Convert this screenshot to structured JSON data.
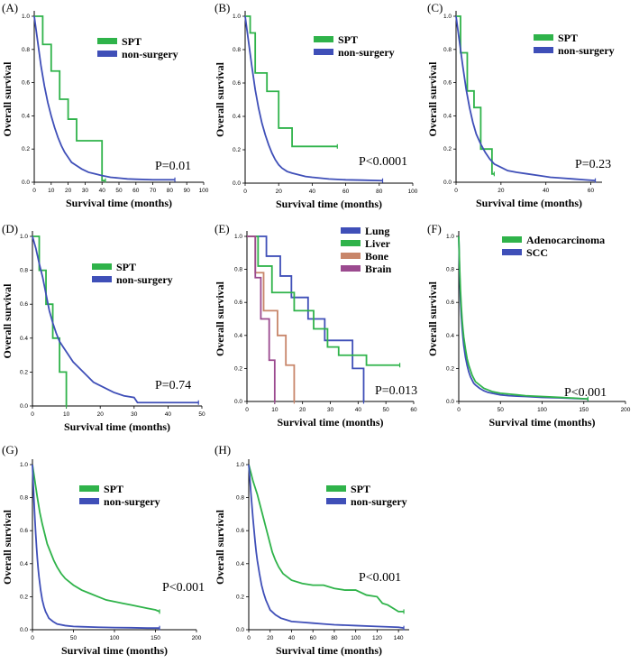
{
  "colors": {
    "green": "#2fb34a",
    "blue": "#3f4fb8",
    "tan": "#c8b77a",
    "brown": "#c8866a",
    "purple": "#9b4a8f",
    "frame": "#000000"
  },
  "chart_data": [
    {
      "type": "line",
      "panel_label": "(A)",
      "xlabel": "Survival time (months)",
      "ylabel": "Overall survival",
      "xlim": [
        0,
        100
      ],
      "ylim": [
        0,
        1
      ],
      "xticks": [
        "0",
        "10",
        "20",
        "30",
        "40",
        "50",
        "60",
        "70",
        "80",
        "90",
        "100"
      ],
      "yticks": [
        "0.0",
        "0.2",
        "0.4",
        "0.6",
        "0.8",
        "1.0"
      ],
      "annotation": "P=0.01",
      "series": [
        {
          "name": "SPT",
          "color": "#2fb34a",
          "x": [
            0,
            5,
            5,
            10,
            10,
            15,
            15,
            20,
            20,
            25,
            25,
            40,
            40,
            42
          ],
          "y": [
            1,
            1,
            0.83,
            0.83,
            0.67,
            0.67,
            0.5,
            0.5,
            0.38,
            0.38,
            0.25,
            0.25,
            0.01,
            0.01
          ]
        },
        {
          "name": "non-surgery",
          "color": "#3f4fb8",
          "x": [
            0,
            2,
            4,
            6,
            8,
            10,
            12,
            14,
            16,
            18,
            20,
            22,
            25,
            28,
            32,
            36,
            40,
            45,
            50,
            55,
            60,
            70,
            83
          ],
          "y": [
            1,
            0.85,
            0.7,
            0.58,
            0.48,
            0.4,
            0.33,
            0.27,
            0.22,
            0.18,
            0.15,
            0.12,
            0.1,
            0.08,
            0.06,
            0.05,
            0.04,
            0.03,
            0.025,
            0.02,
            0.018,
            0.015,
            0.015
          ]
        }
      ]
    },
    {
      "type": "line",
      "panel_label": "(B)",
      "xlabel": "Survival time (months)",
      "ylabel": "Overall survival",
      "xlim": [
        0,
        100
      ],
      "ylim": [
        0,
        1
      ],
      "xticks": [
        "0",
        "20",
        "40",
        "60",
        "80",
        "100"
      ],
      "yticks": [
        "0.0",
        "0.2",
        "0.4",
        "0.6",
        "0.8",
        "1.0"
      ],
      "annotation": "P<0.0001",
      "series": [
        {
          "name": "SPT",
          "color": "#2fb34a",
          "x": [
            0,
            3,
            3,
            6,
            6,
            13,
            13,
            20,
            20,
            28,
            28,
            55
          ],
          "y": [
            1,
            1,
            0.9,
            0.9,
            0.66,
            0.66,
            0.55,
            0.55,
            0.33,
            0.33,
            0.22,
            0.22
          ]
        },
        {
          "name": "non-surgery",
          "color": "#3f4fb8",
          "x": [
            0,
            2,
            4,
            6,
            8,
            10,
            12,
            14,
            16,
            18,
            20,
            22,
            25,
            28,
            32,
            36,
            40,
            50,
            60,
            70,
            82
          ],
          "y": [
            1,
            0.85,
            0.7,
            0.56,
            0.45,
            0.36,
            0.29,
            0.23,
            0.18,
            0.14,
            0.11,
            0.09,
            0.07,
            0.06,
            0.05,
            0.04,
            0.035,
            0.025,
            0.02,
            0.018,
            0.015
          ]
        }
      ]
    },
    {
      "type": "line",
      "panel_label": "(C)",
      "xlabel": "Survival time (months)",
      "ylabel": "Overall survival",
      "xlim": [
        0,
        65
      ],
      "ylim": [
        0,
        1
      ],
      "xticks": [
        "0",
        "20",
        "40",
        "60"
      ],
      "yticks": [
        "0.0",
        "0.2",
        "0.4",
        "0.6",
        "0.8",
        "1.0"
      ],
      "annotation": "P=0.23",
      "series": [
        {
          "name": "SPT",
          "color": "#2fb34a",
          "x": [
            0,
            2,
            2,
            5,
            5,
            8,
            8,
            11,
            11,
            16,
            16,
            17
          ],
          "y": [
            1,
            1,
            0.78,
            0.78,
            0.55,
            0.55,
            0.45,
            0.45,
            0.2,
            0.2,
            0.05,
            0.05
          ]
        },
        {
          "name": "non-surgery",
          "color": "#3f4fb8",
          "x": [
            0,
            1.5,
            3,
            4.5,
            6,
            7.5,
            9,
            11,
            13,
            15,
            17,
            20,
            23,
            27,
            32,
            37,
            42,
            47,
            52,
            57,
            62
          ],
          "y": [
            1,
            0.85,
            0.7,
            0.56,
            0.45,
            0.36,
            0.29,
            0.23,
            0.18,
            0.14,
            0.11,
            0.09,
            0.07,
            0.06,
            0.05,
            0.04,
            0.03,
            0.025,
            0.02,
            0.015,
            0.01
          ]
        }
      ]
    },
    {
      "type": "line",
      "panel_label": "(D)",
      "xlabel": "Survival time (months)",
      "ylabel": "Overall survival",
      "xlim": [
        0,
        50
      ],
      "ylim": [
        0,
        1
      ],
      "xticks": [
        "0",
        "10",
        "20",
        "30",
        "40",
        "50"
      ],
      "yticks": [
        "0.0",
        "0.2",
        "0.4",
        "0.6",
        "0.8",
        "1.0"
      ],
      "annotation": "P=0.74",
      "series": [
        {
          "name": "SPT",
          "color": "#2fb34a",
          "x": [
            0,
            2,
            2,
            4,
            4,
            6,
            6,
            8,
            8,
            10,
            10
          ],
          "y": [
            1,
            1,
            0.8,
            0.8,
            0.6,
            0.6,
            0.4,
            0.4,
            0.2,
            0.2,
            0
          ]
        },
        {
          "name": "non-surgery",
          "color": "#3f4fb8",
          "x": [
            0,
            1,
            2,
            3,
            4,
            5,
            6,
            7,
            8,
            9,
            10,
            11,
            12,
            13,
            14,
            15,
            16,
            17,
            18,
            19,
            20,
            22,
            24,
            27,
            30,
            31,
            35,
            40,
            45,
            49
          ],
          "y": [
            1,
            0.93,
            0.84,
            0.76,
            0.66,
            0.56,
            0.49,
            0.43,
            0.38,
            0.35,
            0.32,
            0.29,
            0.26,
            0.24,
            0.22,
            0.2,
            0.18,
            0.16,
            0.14,
            0.13,
            0.12,
            0.1,
            0.08,
            0.06,
            0.05,
            0.02,
            0.02,
            0.02,
            0.02,
            0.02
          ]
        }
      ]
    },
    {
      "type": "line",
      "panel_label": "(E)",
      "xlabel": "Survival time (months)",
      "ylabel": "Overall survival",
      "xlim": [
        0,
        60
      ],
      "ylim": [
        0,
        1
      ],
      "xticks": [
        "0",
        "10",
        "20",
        "30",
        "40",
        "50",
        "60"
      ],
      "yticks": [
        "0.0",
        "0.2",
        "0.4",
        "0.6",
        "0.8",
        "1.0"
      ],
      "annotation": "P=0.013",
      "series": [
        {
          "name": "Lung",
          "color": "#3f4fb8",
          "x": [
            0,
            7,
            7,
            12,
            12,
            16,
            16,
            22,
            22,
            28,
            28,
            38,
            38,
            42,
            42
          ],
          "y": [
            1,
            1,
            0.88,
            0.88,
            0.76,
            0.76,
            0.63,
            0.63,
            0.5,
            0.5,
            0.37,
            0.37,
            0.2,
            0.2,
            0
          ]
        },
        {
          "name": "Liver",
          "color": "#2fb34a",
          "x": [
            0,
            4,
            4,
            9,
            9,
            17,
            17,
            24,
            24,
            29,
            29,
            33,
            33,
            43,
            43,
            55
          ],
          "y": [
            1,
            1,
            0.82,
            0.82,
            0.66,
            0.66,
            0.55,
            0.55,
            0.44,
            0.44,
            0.33,
            0.33,
            0.28,
            0.28,
            0.22,
            0.22
          ]
        },
        {
          "name": "Bone",
          "color": "#c8866a",
          "x": [
            0,
            3,
            3,
            6,
            6,
            11,
            11,
            14,
            14,
            17,
            17
          ],
          "y": [
            1,
            1,
            0.78,
            0.78,
            0.55,
            0.55,
            0.4,
            0.4,
            0.22,
            0.22,
            0
          ]
        },
        {
          "name": "Brain",
          "color": "#9b4a8f",
          "x": [
            0,
            3,
            3,
            5,
            5,
            8,
            8,
            10,
            10
          ],
          "y": [
            1,
            1,
            0.75,
            0.75,
            0.5,
            0.5,
            0.25,
            0.25,
            0
          ]
        }
      ]
    },
    {
      "type": "line",
      "panel_label": "(F)",
      "xlabel": "Survival time (months)",
      "ylabel": "Overall survival",
      "xlim": [
        0,
        200
      ],
      "ylim": [
        0,
        1
      ],
      "xticks": [
        "0",
        "50",
        "100",
        "150",
        "200"
      ],
      "yticks": [
        "0.0",
        "0.2",
        "0.4",
        "0.6",
        "0.8",
        "1.0"
      ],
      "annotation": "P<0.001",
      "series": [
        {
          "name": "SCC",
          "color": "#3f4fb8",
          "x": [
            0,
            1,
            2,
            3,
            4,
            5,
            6,
            8,
            10,
            12,
            14,
            16,
            18,
            20,
            25,
            30,
            35,
            40,
            50,
            60,
            70,
            80,
            100,
            120,
            140,
            155
          ],
          "y": [
            1,
            0.78,
            0.62,
            0.52,
            0.45,
            0.39,
            0.34,
            0.27,
            0.22,
            0.18,
            0.15,
            0.13,
            0.11,
            0.1,
            0.08,
            0.065,
            0.055,
            0.05,
            0.04,
            0.035,
            0.032,
            0.03,
            0.025,
            0.022,
            0.018,
            0.015
          ]
        },
        {
          "name": "Adenocarcinoma",
          "color": "#2fb34a",
          "x": [
            0,
            1,
            2,
            3,
            4,
            5,
            6,
            8,
            10,
            12,
            14,
            16,
            18,
            20,
            25,
            30,
            35,
            40,
            50,
            60,
            70,
            80,
            100,
            120,
            140,
            155
          ],
          "y": [
            1,
            0.82,
            0.68,
            0.58,
            0.5,
            0.44,
            0.39,
            0.32,
            0.26,
            0.22,
            0.19,
            0.16,
            0.14,
            0.12,
            0.1,
            0.08,
            0.07,
            0.06,
            0.05,
            0.045,
            0.04,
            0.035,
            0.03,
            0.025,
            0.02,
            0.015
          ]
        }
      ]
    },
    {
      "type": "line",
      "panel_label": "(G)",
      "xlabel": "Survival time (months)",
      "ylabel": "Overall survival",
      "xlim": [
        0,
        200
      ],
      "ylim": [
        0,
        1
      ],
      "xticks": [
        "0",
        "50",
        "100",
        "150",
        "200"
      ],
      "yticks": [
        "0.0",
        "0.2",
        "0.4",
        "0.6",
        "0.8",
        "1.0"
      ],
      "annotation": "P<0.001",
      "series": [
        {
          "name": "SPT",
          "color": "#2fb34a",
          "x": [
            0,
            3,
            6,
            9,
            12,
            15,
            18,
            22,
            26,
            30,
            35,
            40,
            50,
            60,
            70,
            80,
            90,
            100,
            110,
            120,
            130,
            140,
            150,
            155
          ],
          "y": [
            1,
            0.9,
            0.8,
            0.71,
            0.64,
            0.58,
            0.52,
            0.47,
            0.42,
            0.38,
            0.34,
            0.31,
            0.27,
            0.24,
            0.22,
            0.2,
            0.18,
            0.17,
            0.16,
            0.15,
            0.14,
            0.13,
            0.12,
            0.11
          ]
        },
        {
          "name": "non-surgery",
          "color": "#3f4fb8",
          "x": [
            0,
            1,
            2,
            3,
            4,
            5,
            6,
            7,
            8,
            9,
            10,
            12,
            14,
            16,
            18,
            20,
            25,
            30,
            40,
            50,
            60,
            80,
            100,
            120,
            140,
            155
          ],
          "y": [
            1,
            0.88,
            0.77,
            0.67,
            0.58,
            0.5,
            0.43,
            0.37,
            0.32,
            0.28,
            0.24,
            0.18,
            0.14,
            0.11,
            0.09,
            0.07,
            0.05,
            0.035,
            0.025,
            0.02,
            0.018,
            0.015,
            0.013,
            0.012,
            0.01,
            0.01
          ]
        }
      ]
    },
    {
      "type": "line",
      "panel_label": "(H)",
      "xlabel": "Survival time (months)",
      "ylabel": "Overall survival",
      "xlim": [
        0,
        150
      ],
      "ylim": [
        0,
        1
      ],
      "xticks": [
        "0",
        "20",
        "40",
        "60",
        "80",
        "100",
        "120",
        "140"
      ],
      "yticks": [
        "0.0",
        "0.2",
        "0.4",
        "0.6",
        "0.8",
        "1.0"
      ],
      "annotation": "P<0.001",
      "series": [
        {
          "name": "SPT",
          "color": "#2fb34a",
          "x": [
            0,
            2,
            4,
            6,
            8,
            10,
            12,
            14,
            16,
            18,
            20,
            22,
            25,
            28,
            32,
            36,
            40,
            50,
            60,
            70,
            80,
            90,
            100,
            110,
            120,
            125,
            130,
            140,
            145
          ],
          "y": [
            1,
            0.95,
            0.9,
            0.86,
            0.82,
            0.77,
            0.72,
            0.67,
            0.62,
            0.57,
            0.52,
            0.47,
            0.42,
            0.38,
            0.34,
            0.32,
            0.3,
            0.28,
            0.27,
            0.27,
            0.25,
            0.24,
            0.24,
            0.21,
            0.2,
            0.16,
            0.15,
            0.11,
            0.11
          ]
        },
        {
          "name": "non-surgery",
          "color": "#3f4fb8",
          "x": [
            0,
            1,
            2,
            3,
            4,
            5,
            6,
            7,
            8,
            10,
            12,
            14,
            16,
            18,
            20,
            25,
            30,
            35,
            40,
            50,
            60,
            70,
            80,
            100,
            120,
            140,
            145
          ],
          "y": [
            1,
            0.92,
            0.83,
            0.75,
            0.67,
            0.6,
            0.53,
            0.47,
            0.42,
            0.34,
            0.27,
            0.22,
            0.18,
            0.15,
            0.12,
            0.09,
            0.07,
            0.06,
            0.05,
            0.045,
            0.04,
            0.035,
            0.03,
            0.025,
            0.02,
            0.015,
            0.01
          ]
        }
      ]
    }
  ]
}
